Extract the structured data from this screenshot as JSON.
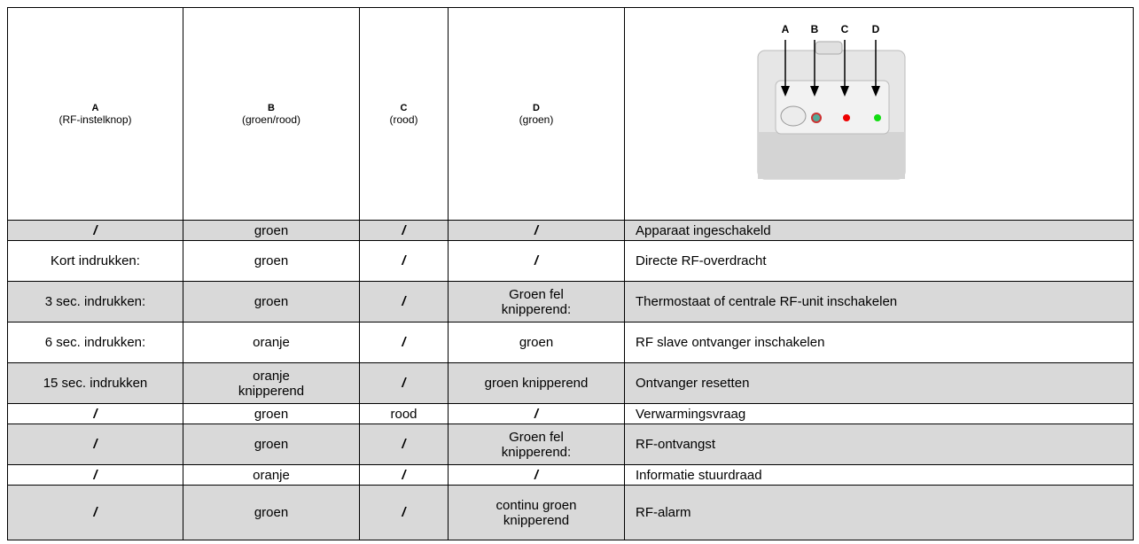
{
  "header": [
    {
      "letter": "A",
      "desc": "(RF-instelknop)"
    },
    {
      "letter": "B",
      "desc": "(groen/rood)"
    },
    {
      "letter": "C",
      "desc": "(rood)"
    },
    {
      "letter": "D",
      "desc": "(groen)"
    }
  ],
  "image_labels": [
    "A",
    "B",
    "C",
    "D"
  ],
  "rows": [
    [
      "/",
      "groen",
      "/",
      "/",
      "Apparaat ingeschakeld"
    ],
    [
      "Kort indrukken:",
      "groen",
      "/",
      "/",
      "Directe RF-overdracht"
    ],
    [
      "3 sec. indrukken:",
      "groen",
      "/",
      "Groen fel knipperend:",
      "Thermostaat of centrale RF-unit inschakelen"
    ],
    [
      "6 sec. indrukken:",
      "oranje",
      "/",
      "groen",
      "RF slave ontvanger inschakelen"
    ],
    [
      "15 sec. indrukken",
      "oranje knipperend",
      "/",
      "groen knipperend",
      "Ontvanger resetten"
    ],
    [
      "/",
      "groen",
      "rood",
      "/",
      "Verwarmingsvraag"
    ],
    [
      "/",
      "groen",
      "/",
      "Groen fel knipperend:",
      "RF-ontvangst"
    ],
    [
      "/",
      "oranje",
      "/",
      "/",
      "Informatie stuurdraad"
    ],
    [
      "/",
      "groen",
      "/",
      "continu groen knipperend",
      "RF-alarm"
    ]
  ]
}
